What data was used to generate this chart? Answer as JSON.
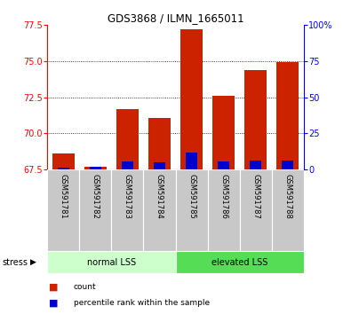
{
  "title": "GDS3868 / ILMN_1665011",
  "samples": [
    "GSM591781",
    "GSM591782",
    "GSM591783",
    "GSM591784",
    "GSM591785",
    "GSM591786",
    "GSM591787",
    "GSM591788"
  ],
  "red_values": [
    68.6,
    67.7,
    71.7,
    71.1,
    77.2,
    72.6,
    74.4,
    74.95
  ],
  "blue_values": [
    67.65,
    67.68,
    68.05,
    68.02,
    68.65,
    68.08,
    68.1,
    68.1
  ],
  "baseline": 67.5,
  "ylim_left": [
    67.5,
    77.5
  ],
  "ylim_right": [
    0,
    100
  ],
  "yticks_left": [
    67.5,
    70.0,
    72.5,
    75.0,
    77.5
  ],
  "yticks_right": [
    0,
    25,
    50,
    75,
    100
  ],
  "groups": [
    {
      "label": "normal LSS",
      "start": 0,
      "end": 4,
      "color": "#ccffcc"
    },
    {
      "label": "elevated LSS",
      "start": 4,
      "end": 8,
      "color": "#55dd55"
    }
  ],
  "bar_color": "#cc2200",
  "blue_color": "#0000cc",
  "bg_color": "#ffffff",
  "tick_bg": "#c8c8c8",
  "stress_label": "stress",
  "legend_items": [
    {
      "color": "#cc2200",
      "label": "count"
    },
    {
      "color": "#0000cc",
      "label": "percentile rank within the sample"
    }
  ]
}
